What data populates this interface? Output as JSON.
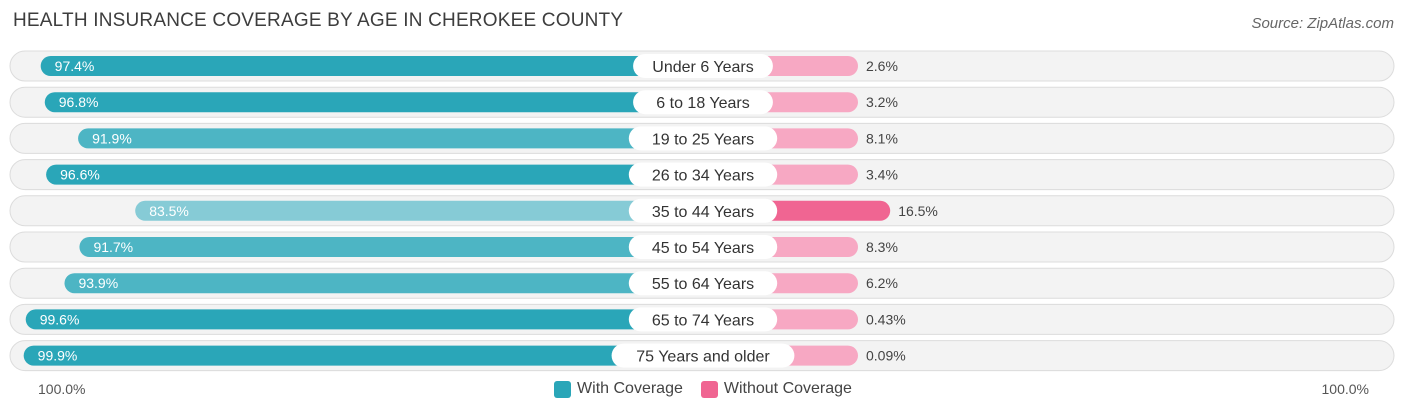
{
  "title": "HEALTH INSURANCE COVERAGE BY AGE IN CHEROKEE COUNTY",
  "source": "Source: ZipAtlas.com",
  "chart_data": {
    "type": "bar",
    "orientation": "horizontal-diverging",
    "categories": [
      "Under 6 Years",
      "6 to 18 Years",
      "19 to 25 Years",
      "26 to 34 Years",
      "35 to 44 Years",
      "45 to 54 Years",
      "55 to 64 Years",
      "65 to 74 Years",
      "75 Years and older"
    ],
    "series": [
      {
        "name": "With Coverage",
        "values": [
          97.4,
          96.8,
          91.9,
          96.6,
          83.5,
          91.7,
          93.9,
          99.6,
          99.9
        ],
        "labels": [
          "97.4%",
          "96.8%",
          "91.9%",
          "96.6%",
          "83.5%",
          "91.7%",
          "93.9%",
          "99.6%",
          "99.9%"
        ]
      },
      {
        "name": "Without Coverage",
        "values": [
          2.6,
          3.2,
          8.1,
          3.4,
          16.5,
          8.3,
          6.2,
          0.43,
          0.09
        ],
        "labels": [
          "2.6%",
          "3.2%",
          "8.1%",
          "3.4%",
          "16.5%",
          "8.3%",
          "6.2%",
          "0.43%",
          "0.09%"
        ]
      }
    ],
    "xlim": [
      0,
      100
    ],
    "axis_left_label": "100.0%",
    "axis_right_label": "100.0%",
    "legend_position": "bottom-center"
  },
  "colors": {
    "with_strong": "#2aa6b8",
    "with_light": "#86cbd6",
    "without_strong": "#f06592",
    "without_light": "#f7a8c3",
    "row_bg": "#f3f3f3",
    "row_border": "#dcdcdc"
  }
}
